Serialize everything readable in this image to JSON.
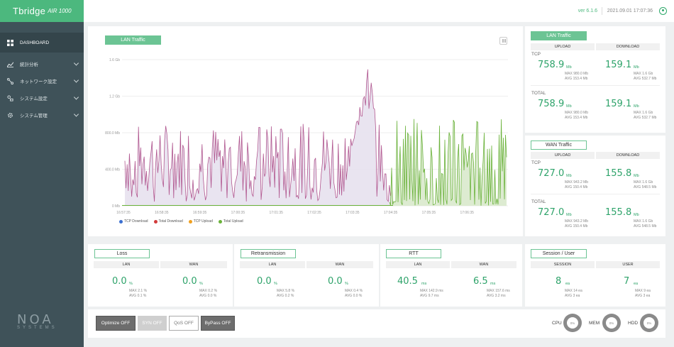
{
  "app": {
    "brand": "Tbridge",
    "model": "AIR 1000",
    "version": "ver 6.1.6",
    "datetime": "2021.09.01 17:07:36"
  },
  "sidebar": {
    "items": [
      {
        "label": "DASHBOARD",
        "icon": "dashboard-icon"
      },
      {
        "label": "統計分析",
        "icon": "chart-icon"
      },
      {
        "label": "ネットワーク設定",
        "icon": "network-icon"
      },
      {
        "label": "システム設定",
        "icon": "settings-icon"
      },
      {
        "label": "システム管理",
        "icon": "gear-icon"
      }
    ],
    "footer_mark": "NOA",
    "footer_sub": "SYSTEMS"
  },
  "lan_chart": {
    "tag": "LAN Traffic",
    "legend": [
      {
        "label": "TCP Download",
        "color": "#3b6fd0"
      },
      {
        "label": "Total Download",
        "color": "#d23b3b"
      },
      {
        "label": "TCP Upload",
        "color": "#f0a020"
      },
      {
        "label": "Total Upload",
        "color": "#6ab23a"
      }
    ]
  },
  "chart_data": {
    "type": "line",
    "title": "LAN Traffic",
    "y_ticks": [
      "1.6 Gb",
      "1.2 Gb",
      "800.0 Mb",
      "400.0 Mb",
      "0 Mb"
    ],
    "x_ticks": [
      "16:57:35",
      "16:58:35",
      "16:59:35",
      "17:00:35",
      "17:01:35",
      "17:02:35",
      "17:03:35",
      "17:04:35",
      "17:05:35",
      "17:06:35"
    ],
    "ylim": [
      0,
      1600
    ],
    "y_unit": "Mb",
    "series": [
      {
        "name": "Total Download",
        "color": "#b0568f",
        "x_range": [
          "16:57:35",
          "17:04:50"
        ],
        "typical_range": [
          100,
          900
        ],
        "peak": 1560,
        "peak_time": "17:03:25"
      },
      {
        "name": "Total Upload",
        "color": "#6ab23a",
        "x_range": [
          "17:04:20",
          "17:07:30"
        ],
        "typical_range": [
          0,
          960
        ]
      }
    ]
  },
  "right": {
    "lan": {
      "tag": "LAN Traffic",
      "upload_head": "UPLOAD",
      "download_head": "DOWNLOAD",
      "rows": [
        {
          "label": "TCP",
          "up": "758.9",
          "up_unit": "Mb",
          "up_max": "MAX 980.0 Mb",
          "up_avg": "AVG 153.4 Mb",
          "down": "159.1",
          "down_unit": "Mb",
          "down_max": "MAX 1.6 Gb",
          "down_avg": "AVG 532.7 Mb"
        },
        {
          "label": "TOTAL",
          "up": "758.9",
          "up_unit": "Mb",
          "up_max": "MAX 980.0 Mb",
          "up_avg": "AVG 153.4 Mb",
          "down": "159.1",
          "down_unit": "Mb",
          "down_max": "MAX 1.6 Gb",
          "down_avg": "AVG 532.7 Mb"
        }
      ]
    },
    "wan": {
      "tag": "WAN Traffic",
      "upload_head": "UPLOAD",
      "download_head": "DOWNLOAD",
      "rows": [
        {
          "label": "TCP",
          "up": "727.0",
          "up_unit": "Mb",
          "up_max": "MAX 943.2 Mb",
          "up_avg": "AVG 150.4 Mb",
          "down": "155.8",
          "down_unit": "Mb",
          "down_max": "MAX 1.6 Gb",
          "down_avg": "AVG 548.5 Mb"
        },
        {
          "label": "TOTAL",
          "up": "727.0",
          "up_unit": "Mb",
          "up_max": "MAX 943.2 Mb",
          "up_avg": "AVG 150.4 Mb",
          "down": "155.8",
          "down_unit": "Mb",
          "down_max": "MAX 1.6 Gb",
          "down_avg": "AVG 548.5 Mb"
        }
      ]
    }
  },
  "cards": [
    {
      "tag": "Loss",
      "left_head": "LAN",
      "right_head": "WAN",
      "lv": "0.0",
      "lu": "%",
      "lmax": "MAX 2.1 %",
      "lavg": "AVG 0.1 %",
      "rv": "0.0",
      "ru": "%",
      "rmax": "MAX 0.2 %",
      "ravg": "AVG 0.0 %"
    },
    {
      "tag": "Retransmission",
      "left_head": "LAN",
      "right_head": "WAN",
      "lv": "0.0",
      "lu": "%",
      "lmax": "MAX 5.8 %",
      "lavg": "AVG 0.2 %",
      "rv": "0.0",
      "ru": "%",
      "rmax": "MAX 0.4 %",
      "ravg": "AVG 0.0 %"
    },
    {
      "tag": "RTT",
      "left_head": "LAN",
      "right_head": "WAN",
      "lv": "40.5",
      "lu": "ms",
      "lmax": "MAX 142.9 ms",
      "lavg": "AVG 9.7 ms",
      "rv": "6.5",
      "ru": "ms",
      "rmax": "MAX 157.6 ms",
      "ravg": "AVG 3.2 ms"
    },
    {
      "tag": "Session / User",
      "left_head": "SESSION",
      "right_head": "USER",
      "lv": "8",
      "lu": "ea",
      "lmax": "MAX 14 ea",
      "lavg": "AVG 3 ea",
      "rv": "7",
      "ru": "ea",
      "rmax": "MAX 9 ea",
      "ravg": "AVG 3 ea"
    }
  ],
  "controls": {
    "buttons": [
      "Optimize OFF",
      "SYN OFF",
      "QoS OFF",
      "ByPass OFF"
    ],
    "gauges": [
      {
        "label": "CPU",
        "value": "0%"
      },
      {
        "label": "MEM",
        "value": "0%"
      },
      {
        "label": "HDD",
        "value": "0%"
      }
    ]
  }
}
